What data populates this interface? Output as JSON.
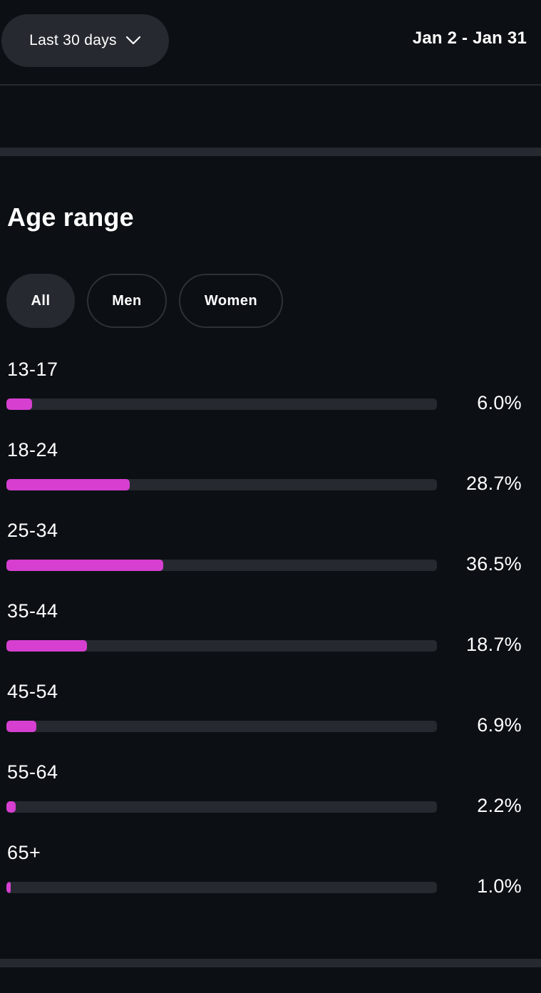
{
  "header": {
    "range_label": "Last 30 days",
    "range_icon": "chevron-down-icon",
    "date_range": "Jan 2 - Jan 31"
  },
  "section": {
    "title": "Age range"
  },
  "filters": [
    {
      "label": "All",
      "active": true
    },
    {
      "label": "Men",
      "active": false
    },
    {
      "label": "Women",
      "active": false
    }
  ],
  "colors": {
    "accent": "#d63fd0",
    "track": "#262a30",
    "background": "#0c1014"
  },
  "age_ranges": [
    {
      "label": "13-17",
      "value": "6.0%",
      "percent": 6.0
    },
    {
      "label": "18-24",
      "value": "28.7%",
      "percent": 28.7
    },
    {
      "label": "25-34",
      "value": "36.5%",
      "percent": 36.5
    },
    {
      "label": "35-44",
      "value": "18.7%",
      "percent": 18.7
    },
    {
      "label": "45-54",
      "value": "6.9%",
      "percent": 6.9
    },
    {
      "label": "55-64",
      "value": "2.2%",
      "percent": 2.2
    },
    {
      "label": "65+",
      "value": "1.0%",
      "percent": 1.0
    }
  ]
}
